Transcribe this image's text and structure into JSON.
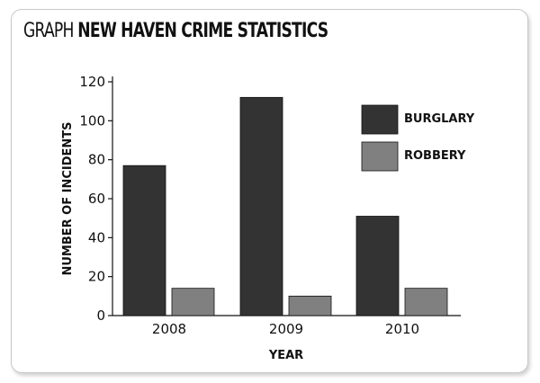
{
  "title": {
    "prefix": "GRAPH",
    "main": "NEW HAVEN CRIME STATISTICS"
  },
  "colors": {
    "burglary": "#333333",
    "robbery": "#808080",
    "axis": "#111111"
  },
  "chart_data": {
    "type": "bar",
    "title": "NEW HAVEN CRIME STATISTICS",
    "xlabel": "YEAR",
    "ylabel": "NUMBER OF INCIDENTS",
    "categories": [
      "2008",
      "2009",
      "2010"
    ],
    "series": [
      {
        "name": "BURGLARY",
        "values": [
          77,
          112,
          51
        ],
        "color": "#333333"
      },
      {
        "name": "ROBBERY",
        "values": [
          14,
          10,
          14
        ],
        "color": "#808080"
      }
    ],
    "ylim": [
      0,
      120
    ],
    "yticks": [
      0,
      20,
      40,
      60,
      80,
      100,
      120
    ],
    "grid": false,
    "legend": "top-right"
  }
}
